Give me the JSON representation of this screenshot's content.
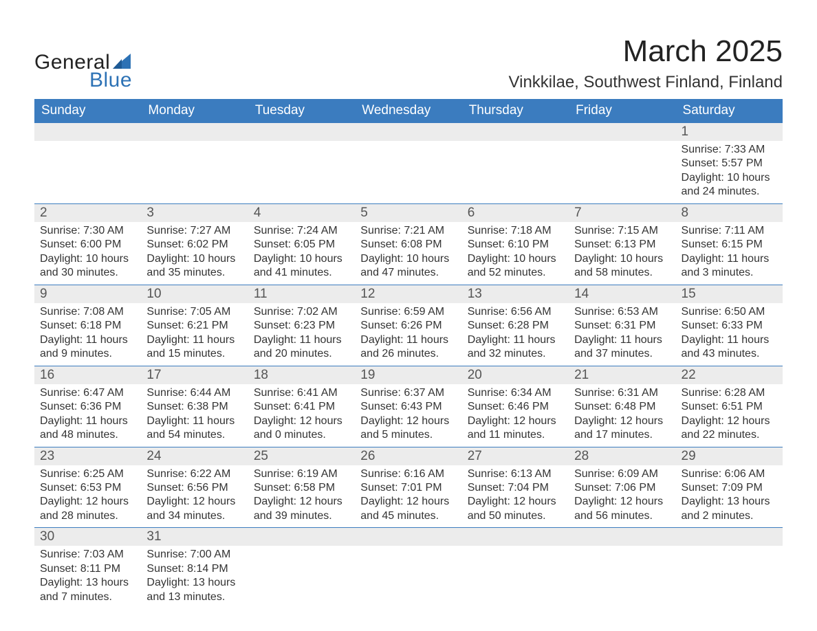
{
  "logo": {
    "text1": "General",
    "text2": "Blue",
    "sail_color": "#2d72b5"
  },
  "title": "March 2025",
  "location": "Vinkkilae, Southwest Finland, Finland",
  "colors": {
    "header_bg": "#3b7cbf",
    "header_text": "#ffffff",
    "daynum_bg": "#ececec",
    "daynum_text": "#555555",
    "body_text": "#333333",
    "row_border": "#3b7cbf"
  },
  "day_headers": [
    "Sunday",
    "Monday",
    "Tuesday",
    "Wednesday",
    "Thursday",
    "Friday",
    "Saturday"
  ],
  "weeks": [
    [
      null,
      null,
      null,
      null,
      null,
      null,
      {
        "n": "1",
        "sr": "7:33 AM",
        "ss": "5:57 PM",
        "dh": "10",
        "dm": "24"
      }
    ],
    [
      {
        "n": "2",
        "sr": "7:30 AM",
        "ss": "6:00 PM",
        "dh": "10",
        "dm": "30"
      },
      {
        "n": "3",
        "sr": "7:27 AM",
        "ss": "6:02 PM",
        "dh": "10",
        "dm": "35"
      },
      {
        "n": "4",
        "sr": "7:24 AM",
        "ss": "6:05 PM",
        "dh": "10",
        "dm": "41"
      },
      {
        "n": "5",
        "sr": "7:21 AM",
        "ss": "6:08 PM",
        "dh": "10",
        "dm": "47"
      },
      {
        "n": "6",
        "sr": "7:18 AM",
        "ss": "6:10 PM",
        "dh": "10",
        "dm": "52"
      },
      {
        "n": "7",
        "sr": "7:15 AM",
        "ss": "6:13 PM",
        "dh": "10",
        "dm": "58"
      },
      {
        "n": "8",
        "sr": "7:11 AM",
        "ss": "6:15 PM",
        "dh": "11",
        "dm": "3"
      }
    ],
    [
      {
        "n": "9",
        "sr": "7:08 AM",
        "ss": "6:18 PM",
        "dh": "11",
        "dm": "9"
      },
      {
        "n": "10",
        "sr": "7:05 AM",
        "ss": "6:21 PM",
        "dh": "11",
        "dm": "15"
      },
      {
        "n": "11",
        "sr": "7:02 AM",
        "ss": "6:23 PM",
        "dh": "11",
        "dm": "20"
      },
      {
        "n": "12",
        "sr": "6:59 AM",
        "ss": "6:26 PM",
        "dh": "11",
        "dm": "26"
      },
      {
        "n": "13",
        "sr": "6:56 AM",
        "ss": "6:28 PM",
        "dh": "11",
        "dm": "32"
      },
      {
        "n": "14",
        "sr": "6:53 AM",
        "ss": "6:31 PM",
        "dh": "11",
        "dm": "37"
      },
      {
        "n": "15",
        "sr": "6:50 AM",
        "ss": "6:33 PM",
        "dh": "11",
        "dm": "43"
      }
    ],
    [
      {
        "n": "16",
        "sr": "6:47 AM",
        "ss": "6:36 PM",
        "dh": "11",
        "dm": "48"
      },
      {
        "n": "17",
        "sr": "6:44 AM",
        "ss": "6:38 PM",
        "dh": "11",
        "dm": "54"
      },
      {
        "n": "18",
        "sr": "6:41 AM",
        "ss": "6:41 PM",
        "dh": "12",
        "dm": "0"
      },
      {
        "n": "19",
        "sr": "6:37 AM",
        "ss": "6:43 PM",
        "dh": "12",
        "dm": "5"
      },
      {
        "n": "20",
        "sr": "6:34 AM",
        "ss": "6:46 PM",
        "dh": "12",
        "dm": "11"
      },
      {
        "n": "21",
        "sr": "6:31 AM",
        "ss": "6:48 PM",
        "dh": "12",
        "dm": "17"
      },
      {
        "n": "22",
        "sr": "6:28 AM",
        "ss": "6:51 PM",
        "dh": "12",
        "dm": "22"
      }
    ],
    [
      {
        "n": "23",
        "sr": "6:25 AM",
        "ss": "6:53 PM",
        "dh": "12",
        "dm": "28"
      },
      {
        "n": "24",
        "sr": "6:22 AM",
        "ss": "6:56 PM",
        "dh": "12",
        "dm": "34"
      },
      {
        "n": "25",
        "sr": "6:19 AM",
        "ss": "6:58 PM",
        "dh": "12",
        "dm": "39"
      },
      {
        "n": "26",
        "sr": "6:16 AM",
        "ss": "7:01 PM",
        "dh": "12",
        "dm": "45"
      },
      {
        "n": "27",
        "sr": "6:13 AM",
        "ss": "7:04 PM",
        "dh": "12",
        "dm": "50"
      },
      {
        "n": "28",
        "sr": "6:09 AM",
        "ss": "7:06 PM",
        "dh": "12",
        "dm": "56"
      },
      {
        "n": "29",
        "sr": "6:06 AM",
        "ss": "7:09 PM",
        "dh": "13",
        "dm": "2"
      }
    ],
    [
      {
        "n": "30",
        "sr": "7:03 AM",
        "ss": "8:11 PM",
        "dh": "13",
        "dm": "7"
      },
      {
        "n": "31",
        "sr": "7:00 AM",
        "ss": "8:14 PM",
        "dh": "13",
        "dm": "13"
      },
      null,
      null,
      null,
      null,
      null
    ]
  ],
  "labels": {
    "sunrise": "Sunrise:",
    "sunset": "Sunset:",
    "daylight": "Daylight:",
    "hours": "hours",
    "and": "and",
    "minutes": "minutes."
  }
}
